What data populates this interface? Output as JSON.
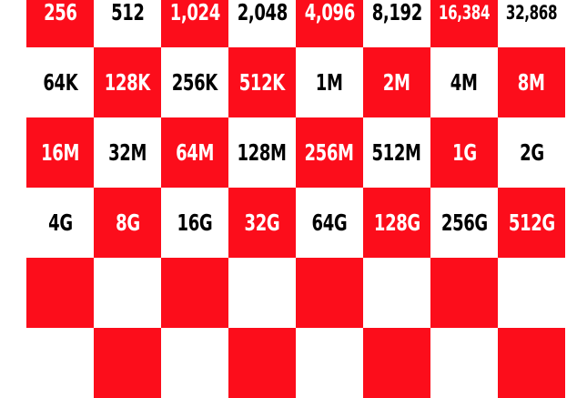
{
  "colors": {
    "red": "#fc0d1b",
    "white": "#ffffff",
    "dark_text": "#000000",
    "light_text": "#ffffff"
  },
  "rows": [
    [
      "256",
      "512",
      "1,024",
      "2,048",
      "4,096",
      "8,192",
      "16,384",
      "32,868"
    ],
    [
      "64K",
      "128K",
      "256K",
      "512K",
      "1M",
      "2M",
      "4M",
      "8M"
    ],
    [
      "16M",
      "32M",
      "64M",
      "128M",
      "256M",
      "512M",
      "1G",
      "2G"
    ],
    [
      "4G",
      "8G",
      "16G",
      "32G",
      "64G",
      "128G",
      "256G",
      "512G"
    ],
    [
      "",
      "",
      "",
      "",
      "",
      "",
      "",
      ""
    ],
    [
      "",
      "",
      "",
      "",
      "",
      "",
      "",
      ""
    ]
  ]
}
